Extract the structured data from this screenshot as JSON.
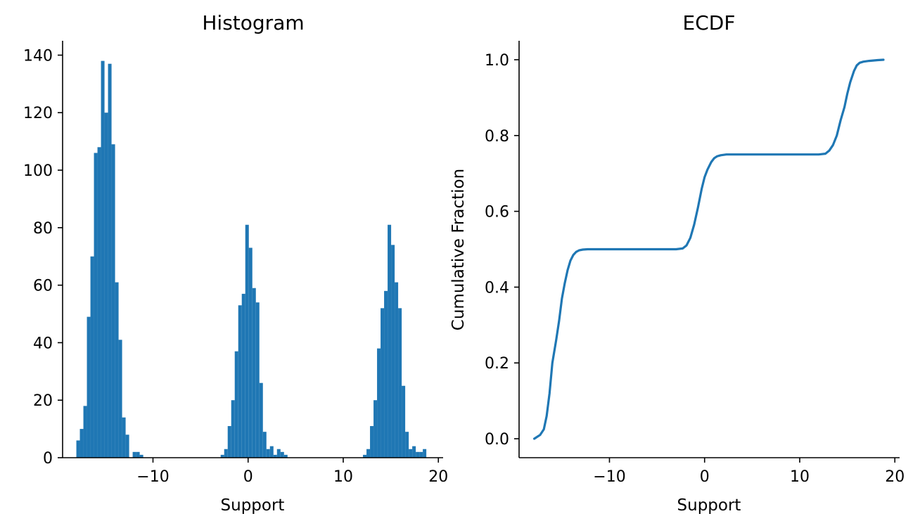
{
  "colors": {
    "series": "#1f77b4",
    "axes": "#000000",
    "background": "#ffffff"
  },
  "chart_data": [
    {
      "type": "bar",
      "title": "Histogram",
      "xlabel": "Support",
      "ylabel": "",
      "xlim": [
        -19.5,
        20.5
      ],
      "ylim": [
        0,
        145
      ],
      "xticks": [
        -10,
        0,
        10,
        20
      ],
      "xtick_labels": [
        "−10",
        "0",
        "10",
        "20"
      ],
      "yticks": [
        0,
        20,
        40,
        60,
        80,
        100,
        120,
        140
      ],
      "ytick_labels": [
        "0",
        "20",
        "40",
        "60",
        "80",
        "100",
        "120",
        "140"
      ],
      "grid": false,
      "bin_width": 0.37,
      "bins": [
        {
          "x": -17.87,
          "count": 6
        },
        {
          "x": -17.5,
          "count": 10
        },
        {
          "x": -17.13,
          "count": 18
        },
        {
          "x": -16.76,
          "count": 49
        },
        {
          "x": -16.39,
          "count": 70
        },
        {
          "x": -16.02,
          "count": 106
        },
        {
          "x": -15.65,
          "count": 108
        },
        {
          "x": -15.28,
          "count": 138
        },
        {
          "x": -14.91,
          "count": 120
        },
        {
          "x": -14.54,
          "count": 137
        },
        {
          "x": -14.17,
          "count": 109
        },
        {
          "x": -13.8,
          "count": 61
        },
        {
          "x": -13.43,
          "count": 41
        },
        {
          "x": -13.06,
          "count": 14
        },
        {
          "x": -12.69,
          "count": 8
        },
        {
          "x": -11.95,
          "count": 2
        },
        {
          "x": -11.58,
          "count": 2
        },
        {
          "x": -11.21,
          "count": 1
        },
        {
          "x": -2.7,
          "count": 1
        },
        {
          "x": -2.33,
          "count": 3
        },
        {
          "x": -1.96,
          "count": 11
        },
        {
          "x": -1.59,
          "count": 20
        },
        {
          "x": -1.22,
          "count": 37
        },
        {
          "x": -0.85,
          "count": 53
        },
        {
          "x": -0.48,
          "count": 57
        },
        {
          "x": -0.11,
          "count": 81
        },
        {
          "x": 0.26,
          "count": 73
        },
        {
          "x": 0.63,
          "count": 59
        },
        {
          "x": 1.0,
          "count": 54
        },
        {
          "x": 1.37,
          "count": 26
        },
        {
          "x": 1.74,
          "count": 9
        },
        {
          "x": 2.11,
          "count": 3
        },
        {
          "x": 2.48,
          "count": 4
        },
        {
          "x": 2.85,
          "count": 1
        },
        {
          "x": 3.22,
          "count": 3
        },
        {
          "x": 3.59,
          "count": 2
        },
        {
          "x": 3.96,
          "count": 1
        },
        {
          "x": 12.26,
          "count": 1
        },
        {
          "x": 12.63,
          "count": 3
        },
        {
          "x": 13.0,
          "count": 11
        },
        {
          "x": 13.37,
          "count": 20
        },
        {
          "x": 13.74,
          "count": 38
        },
        {
          "x": 14.11,
          "count": 52
        },
        {
          "x": 14.48,
          "count": 58
        },
        {
          "x": 14.85,
          "count": 81
        },
        {
          "x": 15.22,
          "count": 74
        },
        {
          "x": 15.59,
          "count": 61
        },
        {
          "x": 15.96,
          "count": 52
        },
        {
          "x": 16.33,
          "count": 25
        },
        {
          "x": 16.7,
          "count": 9
        },
        {
          "x": 17.07,
          "count": 3
        },
        {
          "x": 17.44,
          "count": 4
        },
        {
          "x": 17.81,
          "count": 2
        },
        {
          "x": 18.18,
          "count": 2
        },
        {
          "x": 18.55,
          "count": 3
        }
      ]
    },
    {
      "type": "line",
      "title": "ECDF",
      "xlabel": "Support",
      "ylabel": "Cumulative Fraction",
      "xlim": [
        -19.5,
        20.5
      ],
      "ylim": [
        -0.05,
        1.05
      ],
      "xticks": [
        -10,
        0,
        10,
        20
      ],
      "xtick_labels": [
        "−10",
        "0",
        "10",
        "20"
      ],
      "yticks": [
        0.0,
        0.2,
        0.4,
        0.6,
        0.8,
        1.0
      ],
      "ytick_labels": [
        "0.0",
        "0.2",
        "0.4",
        "0.6",
        "0.8",
        "1.0"
      ],
      "grid": false,
      "series": [
        {
          "x": [
            -17.9,
            -17.3,
            -16.9,
            -16.6,
            -16.3,
            -16.0,
            -15.6,
            -15.3,
            -15.0,
            -14.7,
            -14.4,
            -14.1,
            -13.8,
            -13.5,
            -13.2,
            -12.8,
            -12.3,
            -11.0,
            -5.0,
            -3.0,
            -2.3,
            -1.9,
            -1.5,
            -1.1,
            -0.7,
            -0.3,
            0.0,
            0.3,
            0.7,
            1.0,
            1.3,
            1.7,
            2.3,
            3.5,
            8.0,
            12.0,
            12.7,
            13.1,
            13.5,
            13.9,
            14.3,
            14.7,
            15.0,
            15.3,
            15.7,
            16.0,
            16.3,
            16.7,
            17.3,
            18.2,
            18.8
          ],
          "y": [
            0.0,
            0.01,
            0.025,
            0.06,
            0.12,
            0.2,
            0.26,
            0.31,
            0.37,
            0.41,
            0.445,
            0.47,
            0.485,
            0.493,
            0.497,
            0.499,
            0.5,
            0.5,
            0.5,
            0.5,
            0.502,
            0.51,
            0.53,
            0.565,
            0.61,
            0.66,
            0.69,
            0.71,
            0.73,
            0.74,
            0.745,
            0.748,
            0.75,
            0.75,
            0.75,
            0.75,
            0.752,
            0.76,
            0.775,
            0.8,
            0.84,
            0.875,
            0.91,
            0.94,
            0.97,
            0.985,
            0.992,
            0.995,
            0.997,
            0.999,
            1.0
          ]
        }
      ]
    }
  ]
}
